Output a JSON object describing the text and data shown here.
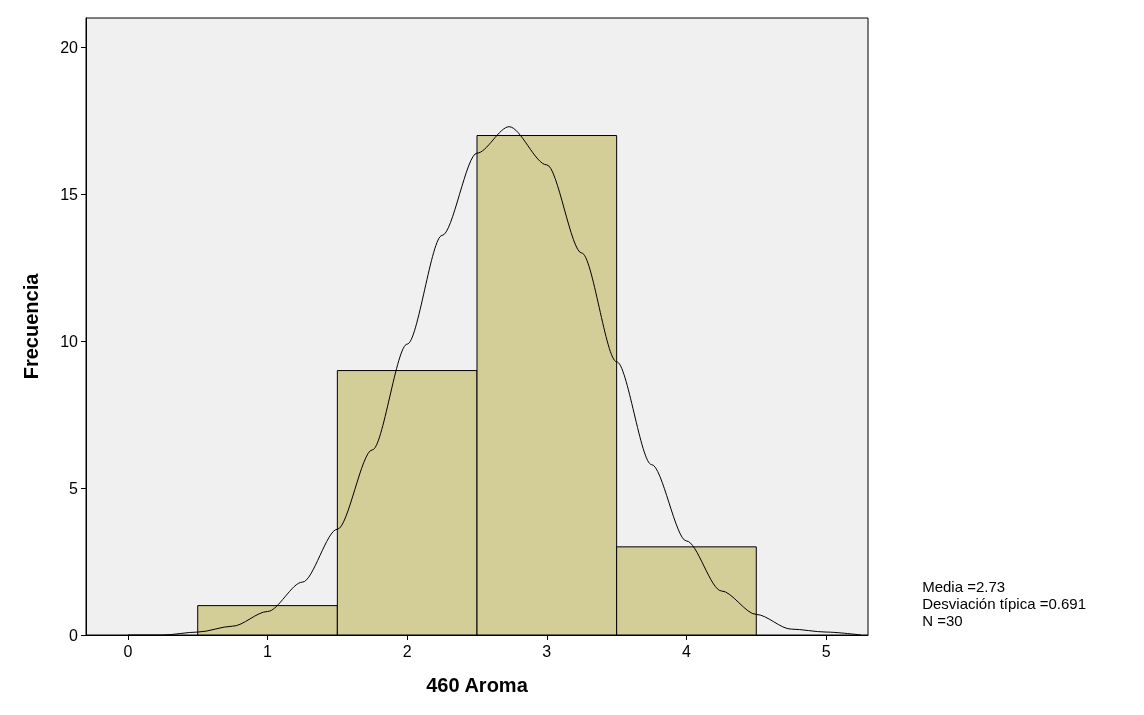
{
  "chart_data": {
    "type": "histogram",
    "xlabel": "460 Aroma",
    "ylabel": "Frecuencia",
    "bins": [
      0.5,
      1.5,
      2.5,
      3.5,
      4.5
    ],
    "values": [
      1,
      9,
      17,
      3
    ],
    "color": "#d3cd98",
    "series": [
      {
        "type": "line",
        "color": "#000000",
        "x": [
          0,
          0.25,
          0.5,
          0.75,
          1,
          1.25,
          1.5,
          1.75,
          2,
          2.25,
          2.5,
          2.73,
          3,
          3.25,
          3.5,
          3.75,
          4,
          4.25,
          4.5,
          4.75,
          5,
          5.25
        ],
        "values": [
          0.0,
          0.0,
          0.1,
          0.3,
          0.8,
          1.8,
          3.6,
          6.3,
          9.9,
          13.6,
          16.4,
          17.3,
          16.0,
          13.0,
          9.3,
          5.8,
          3.2,
          1.5,
          0.7,
          0.2,
          0.1,
          0.0
        ]
      }
    ],
    "xlim": [
      -0.3,
      5.3
    ],
    "xticks": [
      0,
      1,
      2,
      3,
      4,
      5
    ],
    "ylim": [
      0,
      21
    ],
    "yticks": [
      0,
      5,
      10,
      15,
      20
    ],
    "grid": false,
    "marker": "none",
    "annotations": [
      "Media =2.73",
      "Desviación típica =0.691",
      "N =30"
    ]
  }
}
